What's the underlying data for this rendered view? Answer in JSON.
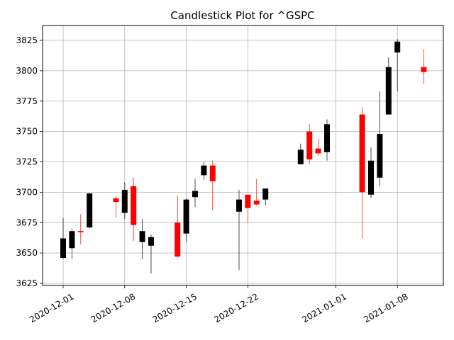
{
  "chart_data": {
    "type": "candlestick",
    "title": "Candlestick Plot for ^GSPC",
    "xlabel": "",
    "ylabel": "",
    "ylim": [
      3625,
      3825
    ],
    "xlim": [
      "2020-11-30",
      "2021-01-11"
    ],
    "grid": true,
    "colors": {
      "up": "#000000",
      "down": "#ff0000",
      "grid": "#b0b0b0"
    },
    "x_ticks": [
      {
        "date": "2020-12-01",
        "label": "2020-12-01"
      },
      {
        "date": "2020-12-08",
        "label": "2020-12-08"
      },
      {
        "date": "2020-12-15",
        "label": "2020-12-15"
      },
      {
        "date": "2020-12-22",
        "label": "2020-12-22"
      },
      {
        "date": "2021-01-01",
        "label": "2021-01-01"
      },
      {
        "date": "2021-01-08",
        "label": "2021-01-08"
      }
    ],
    "y_ticks": [
      3625,
      3650,
      3675,
      3700,
      3725,
      3750,
      3775,
      3800,
      3825
    ],
    "candles": [
      {
        "date": "2020-12-01",
        "open": 3646,
        "high": 3679,
        "low": 3645,
        "close": 3662
      },
      {
        "date": "2020-12-02",
        "open": 3654,
        "high": 3670,
        "low": 3645,
        "close": 3668
      },
      {
        "date": "2020-12-03",
        "open": 3668,
        "high": 3682,
        "low": 3657,
        "close": 3667
      },
      {
        "date": "2020-12-04",
        "open": 3671,
        "high": 3699,
        "low": 3670,
        "close": 3699
      },
      {
        "date": "2020-12-07",
        "open": 3695,
        "high": 3697,
        "low": 3679,
        "close": 3692
      },
      {
        "date": "2020-12-08",
        "open": 3683,
        "high": 3708,
        "low": 3678,
        "close": 3702
      },
      {
        "date": "2020-12-09",
        "open": 3705,
        "high": 3712,
        "low": 3660,
        "close": 3673
      },
      {
        "date": "2020-12-10",
        "open": 3659,
        "high": 3678,
        "low": 3645,
        "close": 3668
      },
      {
        "date": "2020-12-11",
        "open": 3656,
        "high": 3665,
        "low": 3633,
        "close": 3663
      },
      {
        "date": "2020-12-14",
        "open": 3675,
        "high": 3697,
        "low": 3646,
        "close": 3647
      },
      {
        "date": "2020-12-15",
        "open": 3666,
        "high": 3695,
        "low": 3659,
        "close": 3694
      },
      {
        "date": "2020-12-16",
        "open": 3696,
        "high": 3711,
        "low": 3688,
        "close": 3701
      },
      {
        "date": "2020-12-17",
        "open": 3714,
        "high": 3725,
        "low": 3710,
        "close": 3722
      },
      {
        "date": "2020-12-18",
        "open": 3722,
        "high": 3726,
        "low": 3685,
        "close": 3709
      },
      {
        "date": "2020-12-21",
        "open": 3684,
        "high": 3702,
        "low": 3636,
        "close": 3694
      },
      {
        "date": "2020-12-22",
        "open": 3698,
        "high": 3698,
        "low": 3675,
        "close": 3687
      },
      {
        "date": "2020-12-23",
        "open": 3693,
        "high": 3711,
        "low": 3689,
        "close": 3690
      },
      {
        "date": "2020-12-24",
        "open": 3694,
        "high": 3703,
        "low": 3689,
        "close": 3703
      },
      {
        "date": "2020-12-28",
        "open": 3723,
        "high": 3740,
        "low": 3723,
        "close": 3735
      },
      {
        "date": "2020-12-29",
        "open": 3750,
        "high": 3756,
        "low": 3723,
        "close": 3727
      },
      {
        "date": "2020-12-30",
        "open": 3736,
        "high": 3744,
        "low": 3730,
        "close": 3732
      },
      {
        "date": "2020-12-31",
        "open": 3733,
        "high": 3760,
        "low": 3726,
        "close": 3756
      },
      {
        "date": "2021-01-04",
        "open": 3764,
        "high": 3770,
        "low": 3662,
        "close": 3700
      },
      {
        "date": "2021-01-05",
        "open": 3698,
        "high": 3737,
        "low": 3695,
        "close": 3726
      },
      {
        "date": "2021-01-06",
        "open": 3712,
        "high": 3783,
        "low": 3705,
        "close": 3748
      },
      {
        "date": "2021-01-07",
        "open": 3764,
        "high": 3811,
        "low": 3764,
        "close": 3803
      },
      {
        "date": "2021-01-08",
        "open": 3815,
        "high": 3826,
        "low": 3783,
        "close": 3824
      },
      {
        "date": "2021-01-11",
        "open": 3803,
        "high": 3818,
        "low": 3789,
        "close": 3799
      }
    ]
  }
}
